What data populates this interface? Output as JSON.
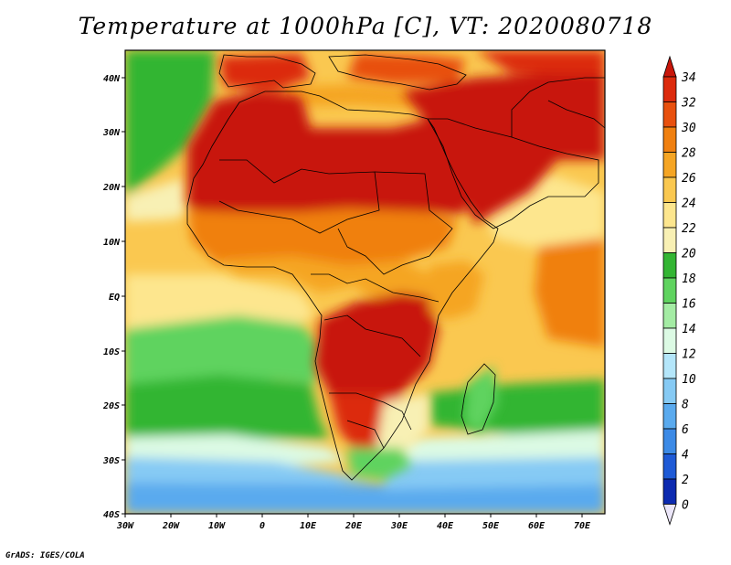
{
  "title": "Temperature at 1000hPa [C], VT: 2020080718",
  "credit": "GrADS: IGES/COLA",
  "map": {
    "lon_ticks": [
      "30W",
      "20W",
      "10W",
      "0",
      "10E",
      "20E",
      "30E",
      "40E",
      "50E",
      "60E",
      "70E"
    ],
    "lat_ticks": [
      "40N",
      "30N",
      "20N",
      "10N",
      "EQ",
      "10S",
      "20S",
      "30S",
      "40S"
    ],
    "lon_range": [
      -30,
      75
    ],
    "lat_range": [
      -40,
      44
    ]
  },
  "colorbar": {
    "labels": [
      "34",
      "32",
      "30",
      "28",
      "26",
      "24",
      "22",
      "20",
      "18",
      "16",
      "14",
      "12",
      "10",
      "8",
      "6",
      "4",
      "2",
      "0"
    ],
    "colors": [
      "#c8160a",
      "#dc2a0c",
      "#e8500e",
      "#f08010",
      "#f5a524",
      "#fac850",
      "#fde68e",
      "#f8f0b4",
      "#33b533",
      "#5fd35f",
      "#a4eca4",
      "#dcfae4",
      "#b4e6fa",
      "#86caf4",
      "#5aaaee",
      "#3c8ae6",
      "#1e5ad6",
      "#0c2ab0",
      "#08107a"
    ]
  }
}
